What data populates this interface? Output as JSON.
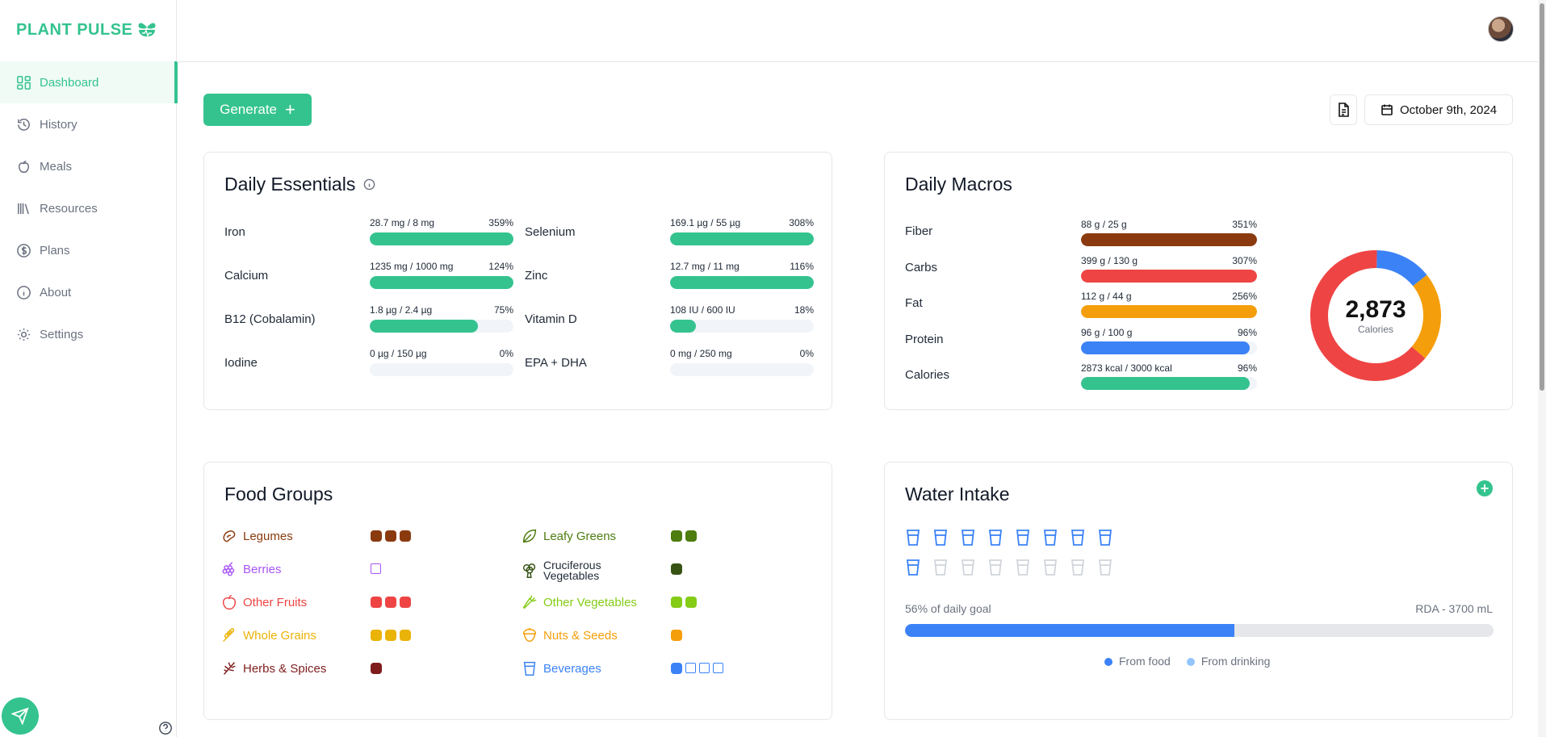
{
  "app": {
    "name": "PLANT PULSE"
  },
  "sidebar": {
    "items": [
      {
        "label": "Dashboard",
        "icon": "dashboard-icon",
        "active": true
      },
      {
        "label": "History",
        "icon": "history-icon"
      },
      {
        "label": "Meals",
        "icon": "apple-icon"
      },
      {
        "label": "Resources",
        "icon": "library-icon"
      },
      {
        "label": "Plans",
        "icon": "dollar-icon"
      },
      {
        "label": "About",
        "icon": "info-icon"
      },
      {
        "label": "Settings",
        "icon": "gear-icon"
      }
    ]
  },
  "toolbar": {
    "generate_label": "Generate",
    "date": "October 9th, 2024"
  },
  "essentials": {
    "title": "Daily Essentials",
    "items": [
      {
        "label": "Iron",
        "amount": "28.7 mg / 8 mg",
        "percent": "359%",
        "fill": 100
      },
      {
        "label": "Selenium",
        "amount": "169.1 µg / 55 µg",
        "percent": "308%",
        "fill": 100
      },
      {
        "label": "Calcium",
        "amount": "1235 mg / 1000 mg",
        "percent": "124%",
        "fill": 100
      },
      {
        "label": "Zinc",
        "amount": "12.7 mg / 11 mg",
        "percent": "116%",
        "fill": 100
      },
      {
        "label": "B12 (Cobalamin)",
        "amount": "1.8 µg / 2.4 µg",
        "percent": "75%",
        "fill": 75
      },
      {
        "label": "Vitamin D",
        "amount": "108 IU / 600 IU",
        "percent": "18%",
        "fill": 18
      },
      {
        "label": "Iodine",
        "amount": "0 µg / 150 µg",
        "percent": "0%",
        "fill": 0
      },
      {
        "label": "EPA + DHA",
        "amount": "0 mg / 250 mg",
        "percent": "0%",
        "fill": 0
      }
    ]
  },
  "macros": {
    "title": "Daily Macros",
    "items": [
      {
        "label": "Fiber",
        "amount": "88 g / 25 g",
        "percent": "351%",
        "fill": 100,
        "color": "#8b3a0f"
      },
      {
        "label": "Carbs",
        "amount": "399 g / 130 g",
        "percent": "307%",
        "fill": 100,
        "color": "#ef4444"
      },
      {
        "label": "Fat",
        "amount": "112 g / 44 g",
        "percent": "256%",
        "fill": 100,
        "color": "#f59e0b"
      },
      {
        "label": "Protein",
        "amount": "96 g / 100 g",
        "percent": "96%",
        "fill": 96,
        "color": "#3b82f6"
      },
      {
        "label": "Calories",
        "amount": "2873 kcal / 3000 kcal",
        "percent": "96%",
        "fill": 96,
        "color": "#34c38f"
      }
    ],
    "donut": {
      "value": "2,873",
      "label": "Calories",
      "segments": [
        {
          "name": "Protein",
          "share": 0.14,
          "color": "#3b82f6"
        },
        {
          "name": "Fat",
          "share": 0.22,
          "color": "#f59e0b"
        },
        {
          "name": "Carbs",
          "share": 0.64,
          "color": "#ef4444"
        }
      ]
    }
  },
  "food_groups": {
    "title": "Food Groups",
    "items": [
      {
        "label": "Legumes",
        "color": "#8b3a0f",
        "filled": 3,
        "empty": 0,
        "icon": "bean-icon"
      },
      {
        "label": "Leafy Greens",
        "color": "#4d7c0f",
        "filled": 2,
        "empty": 0,
        "icon": "leaf-icon"
      },
      {
        "label": "Berries",
        "color": "#a855f7",
        "filled": 0,
        "empty": 1,
        "icon": "grapes-icon"
      },
      {
        "label": "Cruciferous Vegetables",
        "label_line1": "Cruciferous",
        "label_line2": "Vegetables",
        "color": "#365314",
        "filled": 1,
        "empty": 0,
        "icon": "broccoli-icon"
      },
      {
        "label": "Other Fruits",
        "color": "#ef4444",
        "filled": 3,
        "empty": 0,
        "icon": "apple-fruit-icon"
      },
      {
        "label": "Other Vegetables",
        "color": "#84cc16",
        "filled": 2,
        "empty": 0,
        "icon": "carrot-icon"
      },
      {
        "label": "Whole Grains",
        "color": "#eab308",
        "filled": 3,
        "empty": 0,
        "icon": "wheat-icon"
      },
      {
        "label": "Nuts & Seeds",
        "color": "#f59e0b",
        "filled": 1,
        "empty": 0,
        "icon": "acorn-icon"
      },
      {
        "label": "Herbs & Spices",
        "color": "#7f1d1d",
        "filled": 1,
        "empty": 0,
        "icon": "herb-icon"
      },
      {
        "label": "Beverages",
        "color": "#3b82f6",
        "filled": 1,
        "empty": 3,
        "icon": "cup-icon"
      }
    ]
  },
  "water": {
    "title": "Water Intake",
    "cups_filled": 9,
    "cups_total": 16,
    "goal_text": "56% of daily goal",
    "rda_text": "RDA - 3700 mL",
    "progress": 56,
    "legend_food": "From food",
    "legend_drinking": "From drinking",
    "color_food": "#3b82f6",
    "color_drinking": "#93c5fd"
  }
}
